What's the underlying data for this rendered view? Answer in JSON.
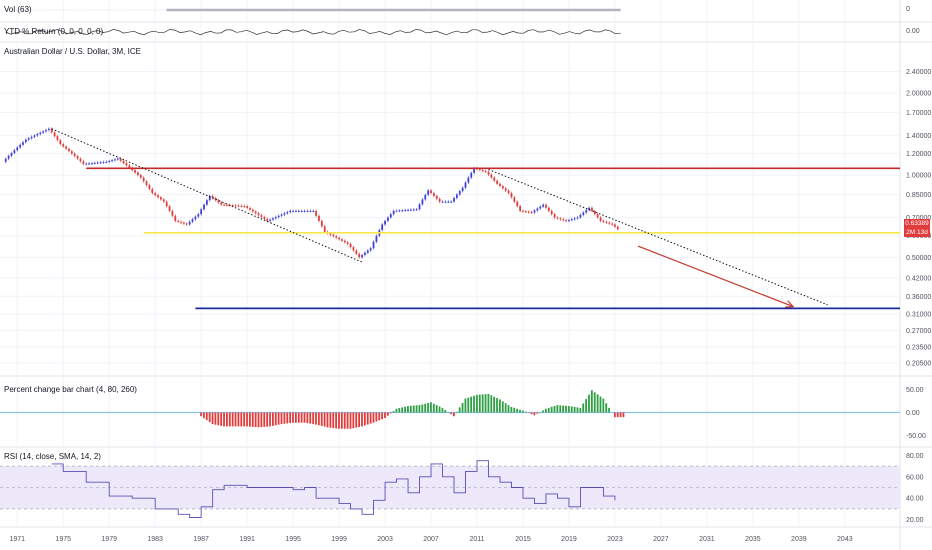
{
  "panes": {
    "volume": {
      "label": "Vol (63)",
      "right_value": "0"
    },
    "ytd": {
      "label": "YTD % Return (0, 0, 0, 0, 0)",
      "right_value": "0.00"
    },
    "main": {
      "label": "Australian Dollar / U.S. Dollar, 3M, ICE"
    },
    "pctchange": {
      "label": "Percent change bar chart (4, 80, 260)"
    },
    "rsi": {
      "label": "RSI (14, close, SMA, 14, 2)"
    }
  },
  "last_price": {
    "value": "0.63389",
    "countdown": "2M 13d"
  },
  "colors": {
    "up": "#3f3fd9",
    "down": "#e23b3b",
    "resistance_line": "#c62828",
    "support_line": "#f5e64a",
    "target_line": "#1a2a9c",
    "projection_arrow": "#c0392b",
    "zero_line": "#90c2f0",
    "bar_positive": "#2ea043",
    "bar_negative": "#e23b3b",
    "rsi_line": "#5b4fb3",
    "rsi_band": "#ede9fb"
  },
  "chart_data": [
    {
      "type": "line",
      "name": "Australian Dollar / U.S. Dollar, 3M, ICE",
      "y_scale": "log",
      "x_ticks": [
        "1971",
        "1975",
        "1979",
        "1983",
        "1987",
        "1991",
        "1995",
        "1999",
        "2003",
        "2007",
        "2011",
        "2015",
        "2019",
        "2023",
        "2027",
        "2031",
        "2035",
        "2039",
        "2043"
      ],
      "y_ticks": [
        "2.40000",
        "2.00000",
        "1.70000",
        "1.40000",
        "1.20000",
        "1.00000",
        "0.85000",
        "0.70000",
        "0.60000",
        "0.50000",
        "0.42000",
        "0.36000",
        "0.31000",
        "0.27000",
        "0.23500",
        "0.20500"
      ],
      "x": [
        1970.0,
        1972.0,
        1974.0,
        1975.0,
        1977.0,
        1979.0,
        1980.0,
        1982.0,
        1983.0,
        1984.0,
        1985.0,
        1986.0,
        1987.0,
        1988.0,
        1989.0,
        1991.0,
        1993.0,
        1995.0,
        1997.0,
        1998.0,
        2000.0,
        2001.0,
        2002.0,
        2003.0,
        2004.0,
        2006.0,
        2007.0,
        2008.0,
        2009.0,
        2010.0,
        2011.0,
        2012.0,
        2013.0,
        2014.0,
        2015.0,
        2016.0,
        2017.0,
        2018.0,
        2019.0,
        2020.0,
        2021.0,
        2022.0,
        2023.0,
        2023.5
      ],
      "close": [
        1.12,
        1.35,
        1.48,
        1.3,
        1.1,
        1.12,
        1.15,
        0.98,
        0.86,
        0.8,
        0.68,
        0.66,
        0.72,
        0.84,
        0.78,
        0.77,
        0.68,
        0.74,
        0.74,
        0.62,
        0.56,
        0.5,
        0.54,
        0.66,
        0.74,
        0.75,
        0.88,
        0.8,
        0.8,
        0.9,
        1.06,
        1.03,
        0.93,
        0.86,
        0.74,
        0.73,
        0.78,
        0.7,
        0.68,
        0.7,
        0.76,
        0.68,
        0.66,
        0.63389
      ],
      "lines": [
        {
          "role": "resistance",
          "value": 1.06
        },
        {
          "role": "support",
          "value": 0.615
        },
        {
          "role": "target",
          "value": 0.325
        }
      ],
      "trendlines": [
        {
          "from": [
            1974.0,
            1.48
          ],
          "to": [
            2001.0,
            0.48
          ]
        },
        {
          "from": [
            2012.0,
            1.05
          ],
          "to": [
            2041.5,
            0.335
          ]
        }
      ],
      "projection_arrow": {
        "from": [
          2025.0,
          0.55
        ],
        "to": [
          2038.5,
          0.33
        ]
      },
      "grid": true
    },
    {
      "type": "bar",
      "name": "Percent change bar chart (4, 80, 260)",
      "y_ticks": [
        "50.00",
        "0.00",
        "-50.00"
      ],
      "ylim": [
        -70,
        70
      ],
      "x": [
        1987,
        1988,
        1989,
        1990,
        1991,
        1992,
        1993,
        1994,
        1995,
        1996,
        1997,
        1998,
        1999,
        2000,
        2001,
        2002,
        2003,
        2004,
        2005,
        2006,
        2007,
        2008,
        2009,
        2010,
        2011,
        2012,
        2013,
        2014,
        2015,
        2016,
        2017,
        2018,
        2019,
        2020,
        2021,
        2022,
        2023
      ],
      "values": [
        -8,
        -25,
        -30,
        -30,
        -30,
        -32,
        -30,
        -25,
        -22,
        -22,
        -26,
        -32,
        -35,
        -35,
        -30,
        -22,
        -12,
        8,
        14,
        16,
        22,
        10,
        -8,
        30,
        38,
        40,
        28,
        12,
        4,
        -6,
        8,
        16,
        14,
        10,
        48,
        30,
        -10
      ],
      "grid": true
    },
    {
      "type": "line",
      "name": "RSI (14, close, SMA, 14, 2)",
      "y_ticks": [
        "80.00",
        "60.00",
        "40.00",
        "20.00"
      ],
      "ylim": [
        15,
        85
      ],
      "x": [
        1974,
        1975,
        1977,
        1979,
        1981,
        1983,
        1985,
        1986,
        1987,
        1988,
        1989,
        1991,
        1993,
        1995,
        1996,
        1997,
        1999,
        2000,
        2001,
        2002,
        2003,
        2004,
        2005,
        2006,
        2007,
        2008,
        2009,
        2010,
        2011,
        2012,
        2013,
        2014,
        2015,
        2016,
        2017,
        2018,
        2019,
        2020,
        2021,
        2022,
        2023
      ],
      "values": [
        72,
        65,
        55,
        42,
        40,
        30,
        25,
        22,
        32,
        48,
        52,
        50,
        50,
        48,
        50,
        40,
        35,
        30,
        25,
        38,
        55,
        58,
        45,
        60,
        72,
        60,
        45,
        65,
        75,
        60,
        55,
        50,
        40,
        35,
        44,
        40,
        32,
        50,
        50,
        42,
        38
      ],
      "bands": [
        30,
        50,
        70
      ],
      "grid": true
    }
  ]
}
